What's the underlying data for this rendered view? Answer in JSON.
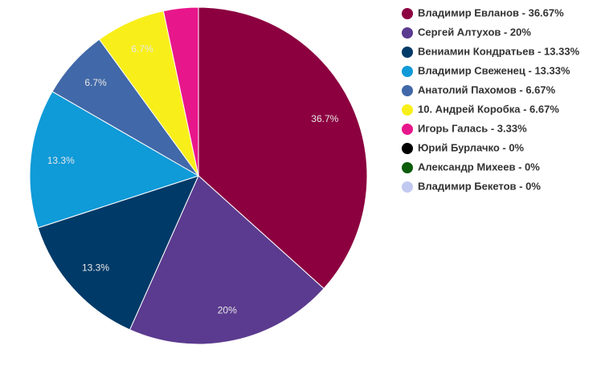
{
  "chart_data": {
    "type": "pie",
    "categories": [
      "Владимир Евланов - 36.67%",
      "Сергей Алтухов - 20%",
      "Вениамин Кондратьев - 13.33%",
      "Владимир Свеженец - 13.33%",
      "Анатолий Пахомов - 6.67%",
      "10. Андрей Коробка - 6.67%",
      "Игорь Галась - 3.33%",
      "Юрий Бурлачко - 0%",
      "Александр Михеев - 0%",
      "Владимир Бекетов - 0%"
    ],
    "values": [
      36.67,
      20,
      13.33,
      13.33,
      6.67,
      6.67,
      3.33,
      0,
      0,
      0
    ],
    "value_labels": [
      "36.7%",
      "20%",
      "13.3%",
      "13.3%",
      "6.7%",
      "6.7%",
      null,
      null,
      null,
      null
    ],
    "colors": [
      "#8c0040",
      "#5b3b8f",
      "#003a68",
      "#0f9ad8",
      "#4168a8",
      "#f8ef1a",
      "#e8168b",
      "#000000",
      "#0b5c0b",
      "#c2c9f0"
    ],
    "legend": "right"
  }
}
